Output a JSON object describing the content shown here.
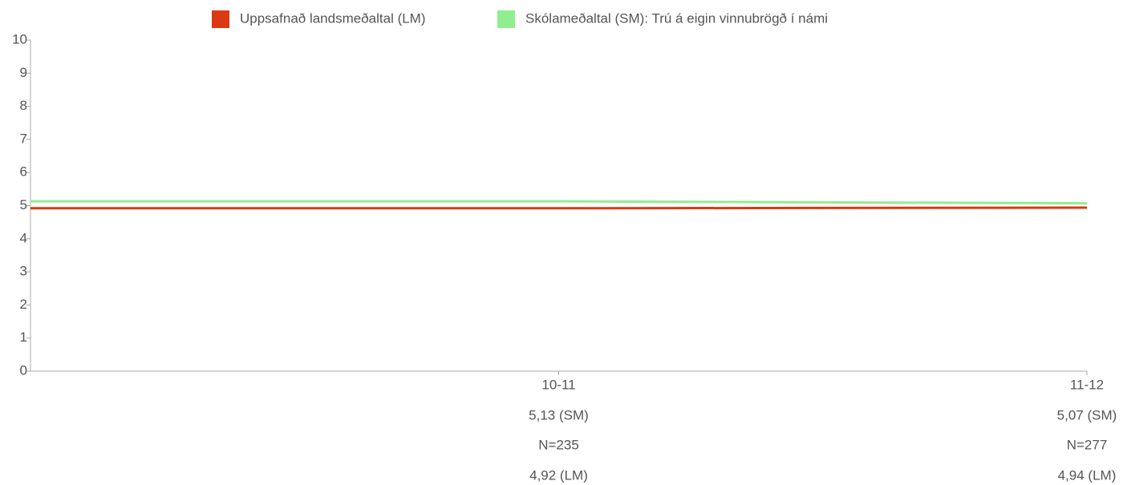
{
  "chart_data": {
    "type": "line",
    "categories": [
      "10-11",
      "11-12"
    ],
    "n_labels": [
      "N=235",
      "N=277"
    ],
    "series": [
      {
        "name": "Uppsafnað landsmeðaltal (LM)",
        "color": "#dc3912",
        "values": [
          4.92,
          4.94
        ],
        "value_labels": [
          "4,92 (LM)",
          "4,94 (LM)"
        ]
      },
      {
        "name": "Skólameðaltal (SM): Trú á eigin vinnubrögð í námi",
        "color": "#90ee90",
        "values": [
          5.13,
          5.07
        ],
        "value_labels": [
          "5,13 (SM)",
          "5,07 (SM)"
        ]
      }
    ],
    "ylim": [
      0,
      10
    ],
    "yticks": [
      0,
      1,
      2,
      3,
      4,
      5,
      6,
      7,
      8,
      9,
      10
    ]
  }
}
